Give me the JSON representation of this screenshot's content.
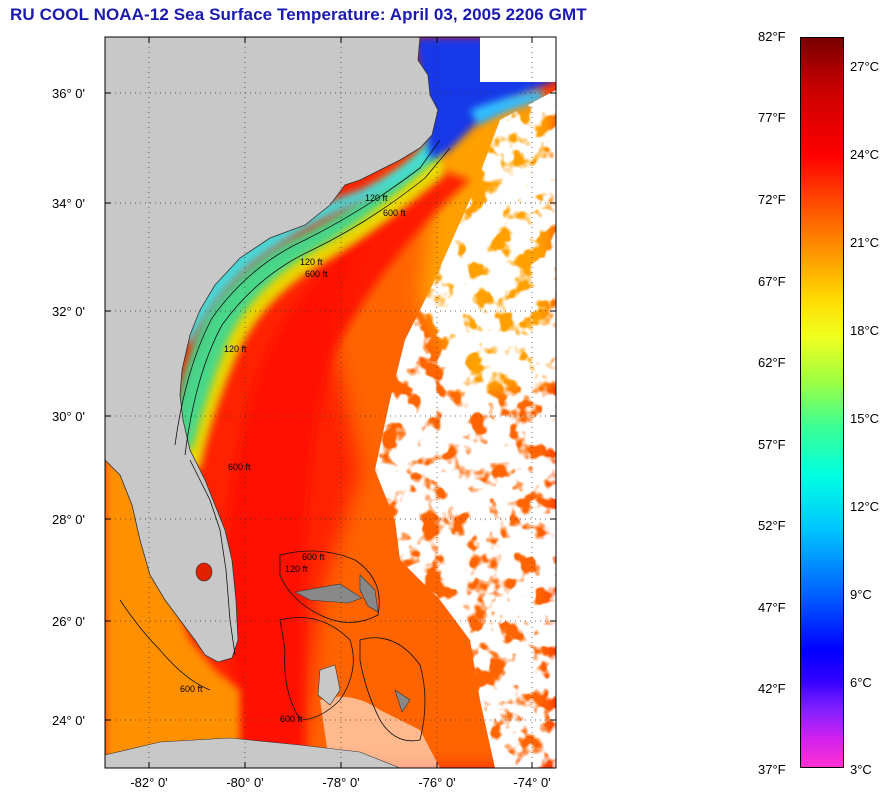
{
  "title": "RU COOL  NOAA-12  Sea Surface Temperature:  April 03, 2005 2206 GMT",
  "map": {
    "lat_labels": [
      "36° 0'",
      "34° 0'",
      "32° 0'",
      "30° 0'",
      "28° 0'",
      "26° 0'",
      "24° 0'"
    ],
    "lon_labels": [
      "-82° 0'",
      "-80° 0'",
      "-78° 0'",
      "-76° 0'",
      "-74° 0'"
    ],
    "contour_labels": [
      "120 ft",
      "600 ft",
      "120 ft",
      "600 ft",
      "120 ft",
      "600 ft",
      "600 ft",
      "600 ft",
      "120 ft",
      "600 ft"
    ],
    "colors": {
      "land": "#c8c8c8",
      "cloud": "#ffffff",
      "warm_sst": "#ff2a00",
      "cool_shelf": "#44d8c8",
      "cold_north": "#1030e0"
    }
  },
  "colorbar": {
    "fahrenheit": [
      "82°F",
      "77°F",
      "72°F",
      "67°F",
      "62°F",
      "57°F",
      "52°F",
      "47°F",
      "42°F",
      "37°F"
    ],
    "celsius": [
      "27°C",
      "24°C",
      "21°C",
      "18°C",
      "15°C",
      "12°C",
      "9°C",
      "6°C",
      "3°C"
    ],
    "range_f": [
      37,
      82
    ],
    "range_c": [
      3,
      27
    ]
  }
}
